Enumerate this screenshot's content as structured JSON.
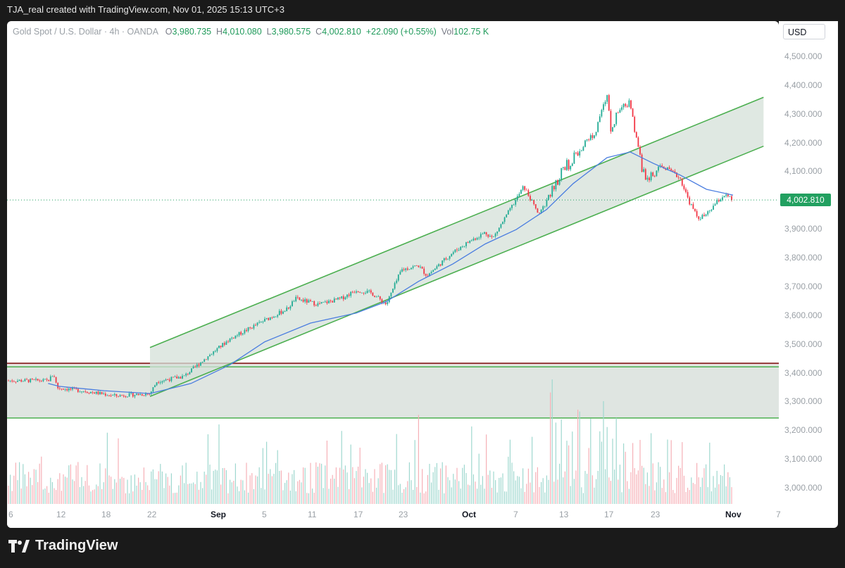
{
  "caption": "TJA_real created with TradingView.com, Nov 01, 2025 15:13 UTC+3",
  "legend": {
    "symbol": "Gold Spot / U.S. Dollar · 4h · OANDA",
    "o_key": "O",
    "o": "3,980.735",
    "h_key": "H",
    "h": "4,010.080",
    "l_key": "L",
    "l": "3,980.575",
    "c_key": "C",
    "c": "4,002.810",
    "change": "+22.090 (+0.55%)",
    "vol_key": "Vol",
    "vol": "102.75 K"
  },
  "currency": "USD",
  "last_price_label": "4,002.810",
  "brand": "TradingView",
  "colors": {
    "up": "#22ab94",
    "down": "#f23645",
    "ma": "#4a7de0",
    "channel": "#4caf50",
    "zone_line": "#8b2c2c",
    "price_label": "#22a060"
  },
  "chart_data": {
    "type": "candlestick",
    "title": "Gold Spot / U.S. Dollar · 4h · OANDA",
    "yticks": [
      "4,500.000",
      "4,400.000",
      "4,300.000",
      "4,200.000",
      "4,100.000",
      "4,000.000",
      "3,900.000",
      "3,800.000",
      "3,700.000",
      "3,600.000",
      "3,500.000",
      "3,400.000",
      "3,300.000",
      "3,200.000",
      "3,100.000",
      "3,000.000"
    ],
    "ylim": [
      2980,
      4530
    ],
    "xticks": [
      "6",
      "12",
      "18",
      "22",
      "Sep",
      "5",
      "11",
      "17",
      "23",
      "Oct",
      "7",
      "13",
      "17",
      "23",
      "Nov",
      "7"
    ],
    "major_xticks": [
      "Sep",
      "Oct",
      "Nov"
    ],
    "last_price": 4002.81,
    "price_path": [
      [
        "Aug 6",
        3375
      ],
      [
        "Aug 9",
        3398
      ],
      [
        "Aug 11",
        3350
      ],
      [
        "Aug 15",
        3340
      ],
      [
        "Aug 19",
        3322
      ],
      [
        "Aug 22",
        3330
      ],
      [
        "Aug 23",
        3372
      ],
      [
        "Aug 27",
        3390
      ],
      [
        "Aug 30",
        3450
      ],
      [
        "Sep 2",
        3520
      ],
      [
        "Sep 5",
        3585
      ],
      [
        "Sep 8",
        3625
      ],
      [
        "Sep 9",
        3660
      ],
      [
        "Sep 12",
        3640
      ],
      [
        "Sep 15",
        3660
      ],
      [
        "Sep 17",
        3690
      ],
      [
        "Sep 19",
        3680
      ],
      [
        "Sep 21",
        3640
      ],
      [
        "Sep 23",
        3760
      ],
      [
        "Sep 25",
        3775
      ],
      [
        "Sep 26",
        3740
      ],
      [
        "Sep 29",
        3820
      ],
      [
        "Oct 1",
        3860
      ],
      [
        "Oct 3",
        3890
      ],
      [
        "Oct 4",
        3870
      ],
      [
        "Oct 6",
        3960
      ],
      [
        "Oct 8",
        4050
      ],
      [
        "Oct 9",
        4000
      ],
      [
        "Oct 10",
        3950
      ],
      [
        "Oct 11",
        4000
      ],
      [
        "Oct 13",
        4100
      ],
      [
        "Oct 15",
        4200
      ],
      [
        "Oct 16",
        4250
      ],
      [
        "Oct 17",
        4370
      ],
      [
        "Oct 17b",
        4260
      ],
      [
        "Oct 19",
        4350
      ],
      [
        "Oct 20",
        4330
      ],
      [
        "Oct 21",
        4180
      ],
      [
        "Oct 22",
        4060
      ],
      [
        "Oct 23",
        4100
      ],
      [
        "Oct 24",
        4120
      ],
      [
        "Oct 26",
        4080
      ],
      [
        "Oct 27",
        4000
      ],
      [
        "Oct 28",
        3940
      ],
      [
        "Oct 29",
        3950
      ],
      [
        "Oct 30",
        3990
      ],
      [
        "Oct 31",
        4020
      ],
      [
        "Nov 1",
        4002
      ]
    ],
    "moving_average": [
      [
        "Aug 6",
        3365
      ],
      [
        "Aug 12",
        3355
      ],
      [
        "Aug 18",
        3340
      ],
      [
        "Aug 22",
        3330
      ],
      [
        "Aug 28",
        3365
      ],
      [
        "Sep 2",
        3430
      ],
      [
        "Sep 5",
        3510
      ],
      [
        "Sep 11",
        3575
      ],
      [
        "Sep 17",
        3610
      ],
      [
        "Sep 21",
        3650
      ],
      [
        "Sep 25",
        3720
      ],
      [
        "Sep 29",
        3780
      ],
      [
        "Oct 3",
        3850
      ],
      [
        "Oct 7",
        3900
      ],
      [
        "Oct 11",
        3970
      ],
      [
        "Oct 14",
        4060
      ],
      [
        "Oct 17",
        4150
      ],
      [
        "Oct 20",
        4170
      ],
      [
        "Oct 23",
        4130
      ],
      [
        "Oct 26",
        4090
      ],
      [
        "Oct 29",
        4040
      ],
      [
        "Nov 1",
        4020
      ]
    ],
    "channel": {
      "start": "Aug 22",
      "end": "Nov 5",
      "upper": [
        3490,
        4360
      ],
      "lower": [
        3320,
        4190
      ]
    },
    "support_zone": [
      3245,
      3430
    ]
  }
}
